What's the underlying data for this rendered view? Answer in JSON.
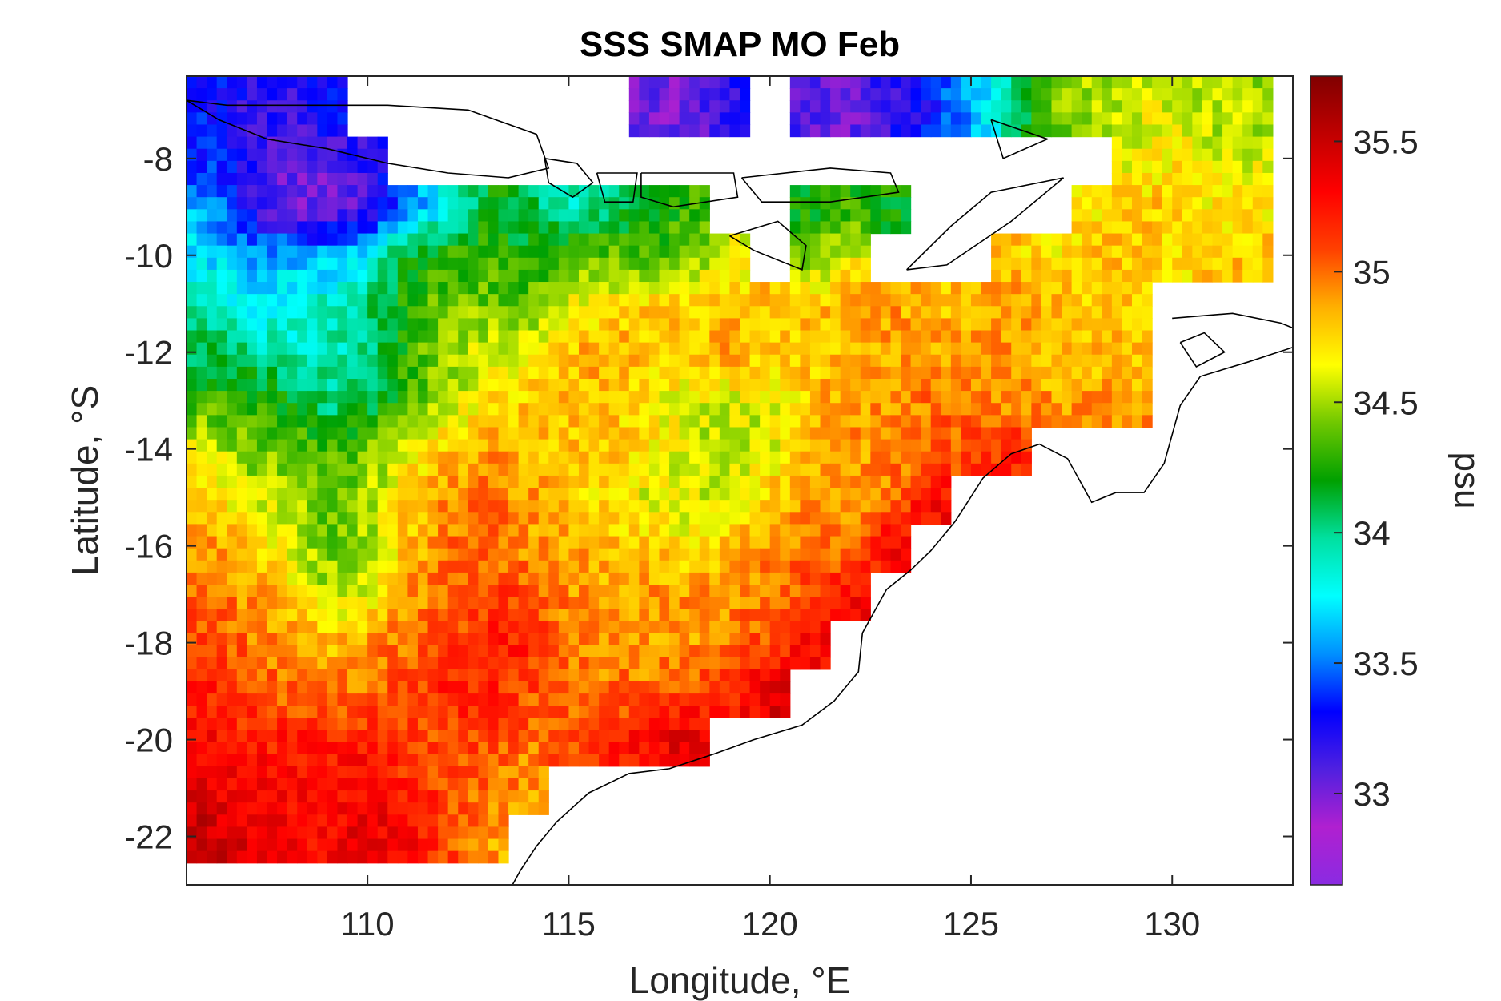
{
  "chart_data": {
    "type": "heatmap",
    "title": "SSS SMAP MO Feb",
    "xlabel": "Longitude, °E",
    "ylabel": "Latitude, °S",
    "colorbar_label": "psu",
    "xlim": [
      105.5,
      133
    ],
    "ylim": [
      -23,
      -6.3
    ],
    "clim": [
      32.65,
      35.75
    ],
    "x_ticks": [
      110,
      115,
      120,
      125,
      130
    ],
    "x_tick_labels": [
      "110",
      "115",
      "120",
      "125",
      "130"
    ],
    "y_ticks": [
      -8,
      -10,
      -12,
      -14,
      -16,
      -18,
      -20,
      -22
    ],
    "y_tick_labels": [
      "-8",
      "-10",
      "-12",
      "-14",
      "-16",
      "-18",
      "-20",
      "-22"
    ],
    "colorbar_ticks": [
      35.5,
      35,
      34.5,
      34,
      33.5,
      33
    ],
    "colorbar_tick_labels": [
      "35.5",
      "35",
      "34.5",
      "34",
      "33.5",
      "33"
    ],
    "colormap": [
      "#8a2be2",
      "#b020d0",
      "#5020e0",
      "#0000ff",
      "#0090ff",
      "#00ffff",
      "#00e0a0",
      "#00a000",
      "#70c800",
      "#ffff00",
      "#ffb000",
      "#ff4000",
      "#ff0000",
      "#c00000",
      "#800000"
    ],
    "grid": false,
    "legend": "colorbar-right",
    "salinity_field_psu": {
      "rows_lat": [
        -7,
        -8,
        -9,
        -10,
        -11,
        -12,
        -13,
        -14,
        -15,
        -16,
        -17,
        -18,
        -19,
        -20,
        -21,
        -22
      ],
      "cols_lon": [
        106,
        107,
        108,
        109,
        110,
        111,
        112,
        113,
        114,
        115,
        116,
        117,
        118,
        119,
        120,
        121,
        122,
        123,
        124,
        125,
        126,
        127,
        128,
        129,
        130,
        131,
        132
      ],
      "values": [
        [
          33.3,
          33.2,
          33.2,
          33.3,
          null,
          null,
          null,
          null,
          null,
          null,
          null,
          33.0,
          33.0,
          33.2,
          null,
          33.1,
          33.0,
          33.2,
          33.3,
          33.6,
          34.0,
          34.4,
          34.5,
          34.6,
          34.6,
          34.5,
          34.5
        ],
        [
          33.4,
          33.2,
          33.1,
          33.1,
          33.2,
          null,
          null,
          null,
          null,
          null,
          null,
          null,
          null,
          null,
          null,
          null,
          null,
          null,
          null,
          null,
          null,
          null,
          null,
          34.6,
          34.7,
          34.6,
          34.6
        ],
        [
          33.6,
          33.2,
          33.0,
          33.0,
          33.1,
          33.5,
          33.8,
          34.2,
          34.1,
          33.9,
          34.0,
          34.2,
          34.3,
          null,
          null,
          34.2,
          34.3,
          34.2,
          null,
          null,
          null,
          null,
          34.7,
          34.8,
          34.8,
          34.7,
          34.7
        ],
        [
          33.7,
          33.6,
          33.6,
          33.6,
          33.8,
          34.2,
          34.3,
          34.3,
          34.2,
          34.3,
          34.4,
          34.3,
          34.4,
          34.6,
          null,
          34.4,
          34.6,
          null,
          null,
          null,
          34.8,
          34.7,
          34.8,
          34.8,
          34.7,
          34.8,
          34.8
        ],
        [
          33.9,
          33.8,
          33.8,
          33.9,
          34.0,
          34.3,
          34.4,
          34.4,
          34.4,
          34.6,
          34.7,
          34.8,
          34.8,
          34.8,
          34.8,
          34.8,
          34.9,
          34.9,
          34.8,
          34.8,
          34.9,
          34.8,
          34.8,
          34.8,
          null,
          null,
          null
        ],
        [
          34.1,
          34.0,
          33.9,
          33.9,
          34.0,
          34.3,
          34.5,
          34.6,
          34.6,
          34.8,
          34.9,
          34.8,
          34.8,
          34.9,
          34.8,
          34.8,
          34.8,
          34.9,
          34.9,
          34.9,
          34.9,
          34.8,
          34.8,
          34.8,
          null,
          null,
          null
        ],
        [
          34.3,
          34.3,
          34.2,
          34.0,
          34.1,
          34.3,
          34.5,
          34.7,
          34.8,
          34.8,
          34.8,
          34.7,
          34.6,
          34.6,
          34.6,
          34.8,
          34.9,
          34.9,
          35.0,
          35.0,
          34.9,
          34.9,
          34.9,
          34.9,
          null,
          null,
          null
        ],
        [
          34.6,
          34.4,
          34.4,
          34.3,
          34.4,
          34.6,
          34.8,
          34.9,
          34.8,
          34.8,
          34.8,
          34.7,
          34.6,
          34.5,
          34.6,
          34.8,
          34.9,
          34.9,
          35.0,
          35.1,
          35.2,
          null,
          null,
          null,
          null,
          null,
          null
        ],
        [
          34.8,
          34.6,
          34.5,
          34.4,
          34.5,
          34.8,
          34.9,
          35.0,
          34.9,
          34.8,
          34.7,
          34.6,
          34.6,
          34.6,
          34.8,
          34.9,
          34.9,
          35.0,
          35.3,
          null,
          null,
          null,
          null,
          null,
          null,
          null,
          null
        ],
        [
          34.9,
          34.8,
          34.6,
          34.4,
          34.5,
          34.8,
          35.0,
          35.0,
          34.9,
          34.9,
          34.8,
          34.8,
          34.7,
          34.8,
          34.9,
          35.0,
          35.0,
          35.3,
          null,
          null,
          null,
          null,
          null,
          null,
          null,
          null,
          null
        ],
        [
          35.0,
          34.9,
          34.8,
          34.5,
          34.6,
          34.9,
          35.0,
          35.1,
          35.1,
          34.9,
          34.9,
          34.9,
          34.9,
          34.9,
          35.0,
          35.1,
          35.3,
          null,
          null,
          null,
          null,
          null,
          null,
          null,
          null,
          null,
          null
        ],
        [
          35.1,
          35.0,
          34.9,
          34.8,
          34.9,
          35.0,
          35.1,
          35.2,
          35.2,
          35.0,
          34.9,
          34.9,
          34.9,
          35.0,
          35.1,
          35.3,
          null,
          null,
          null,
          null,
          null,
          null,
          null,
          null,
          null,
          null,
          null
        ],
        [
          35.2,
          35.1,
          35.0,
          35.0,
          35.0,
          35.1,
          35.2,
          35.2,
          35.1,
          35.0,
          35.0,
          35.0,
          35.1,
          35.2,
          35.4,
          null,
          null,
          null,
          null,
          null,
          null,
          null,
          null,
          null,
          null,
          null,
          null
        ],
        [
          35.3,
          35.2,
          35.2,
          35.2,
          35.2,
          35.1,
          35.1,
          35.1,
          35.0,
          35.1,
          35.2,
          35.3,
          35.4,
          null,
          null,
          null,
          null,
          null,
          null,
          null,
          null,
          null,
          null,
          null,
          null,
          null,
          null
        ],
        [
          35.4,
          35.3,
          35.3,
          35.3,
          35.3,
          35.2,
          35.1,
          35.0,
          34.9,
          null,
          null,
          null,
          null,
          null,
          null,
          null,
          null,
          null,
          null,
          null,
          null,
          null,
          null,
          null,
          null,
          null,
          null
        ],
        [
          35.5,
          35.4,
          35.3,
          35.3,
          35.4,
          35.3,
          35.1,
          34.9,
          null,
          null,
          null,
          null,
          null,
          null,
          null,
          null,
          null,
          null,
          null,
          null,
          null,
          null,
          null,
          null,
          null,
          null,
          null
        ]
      ]
    }
  }
}
